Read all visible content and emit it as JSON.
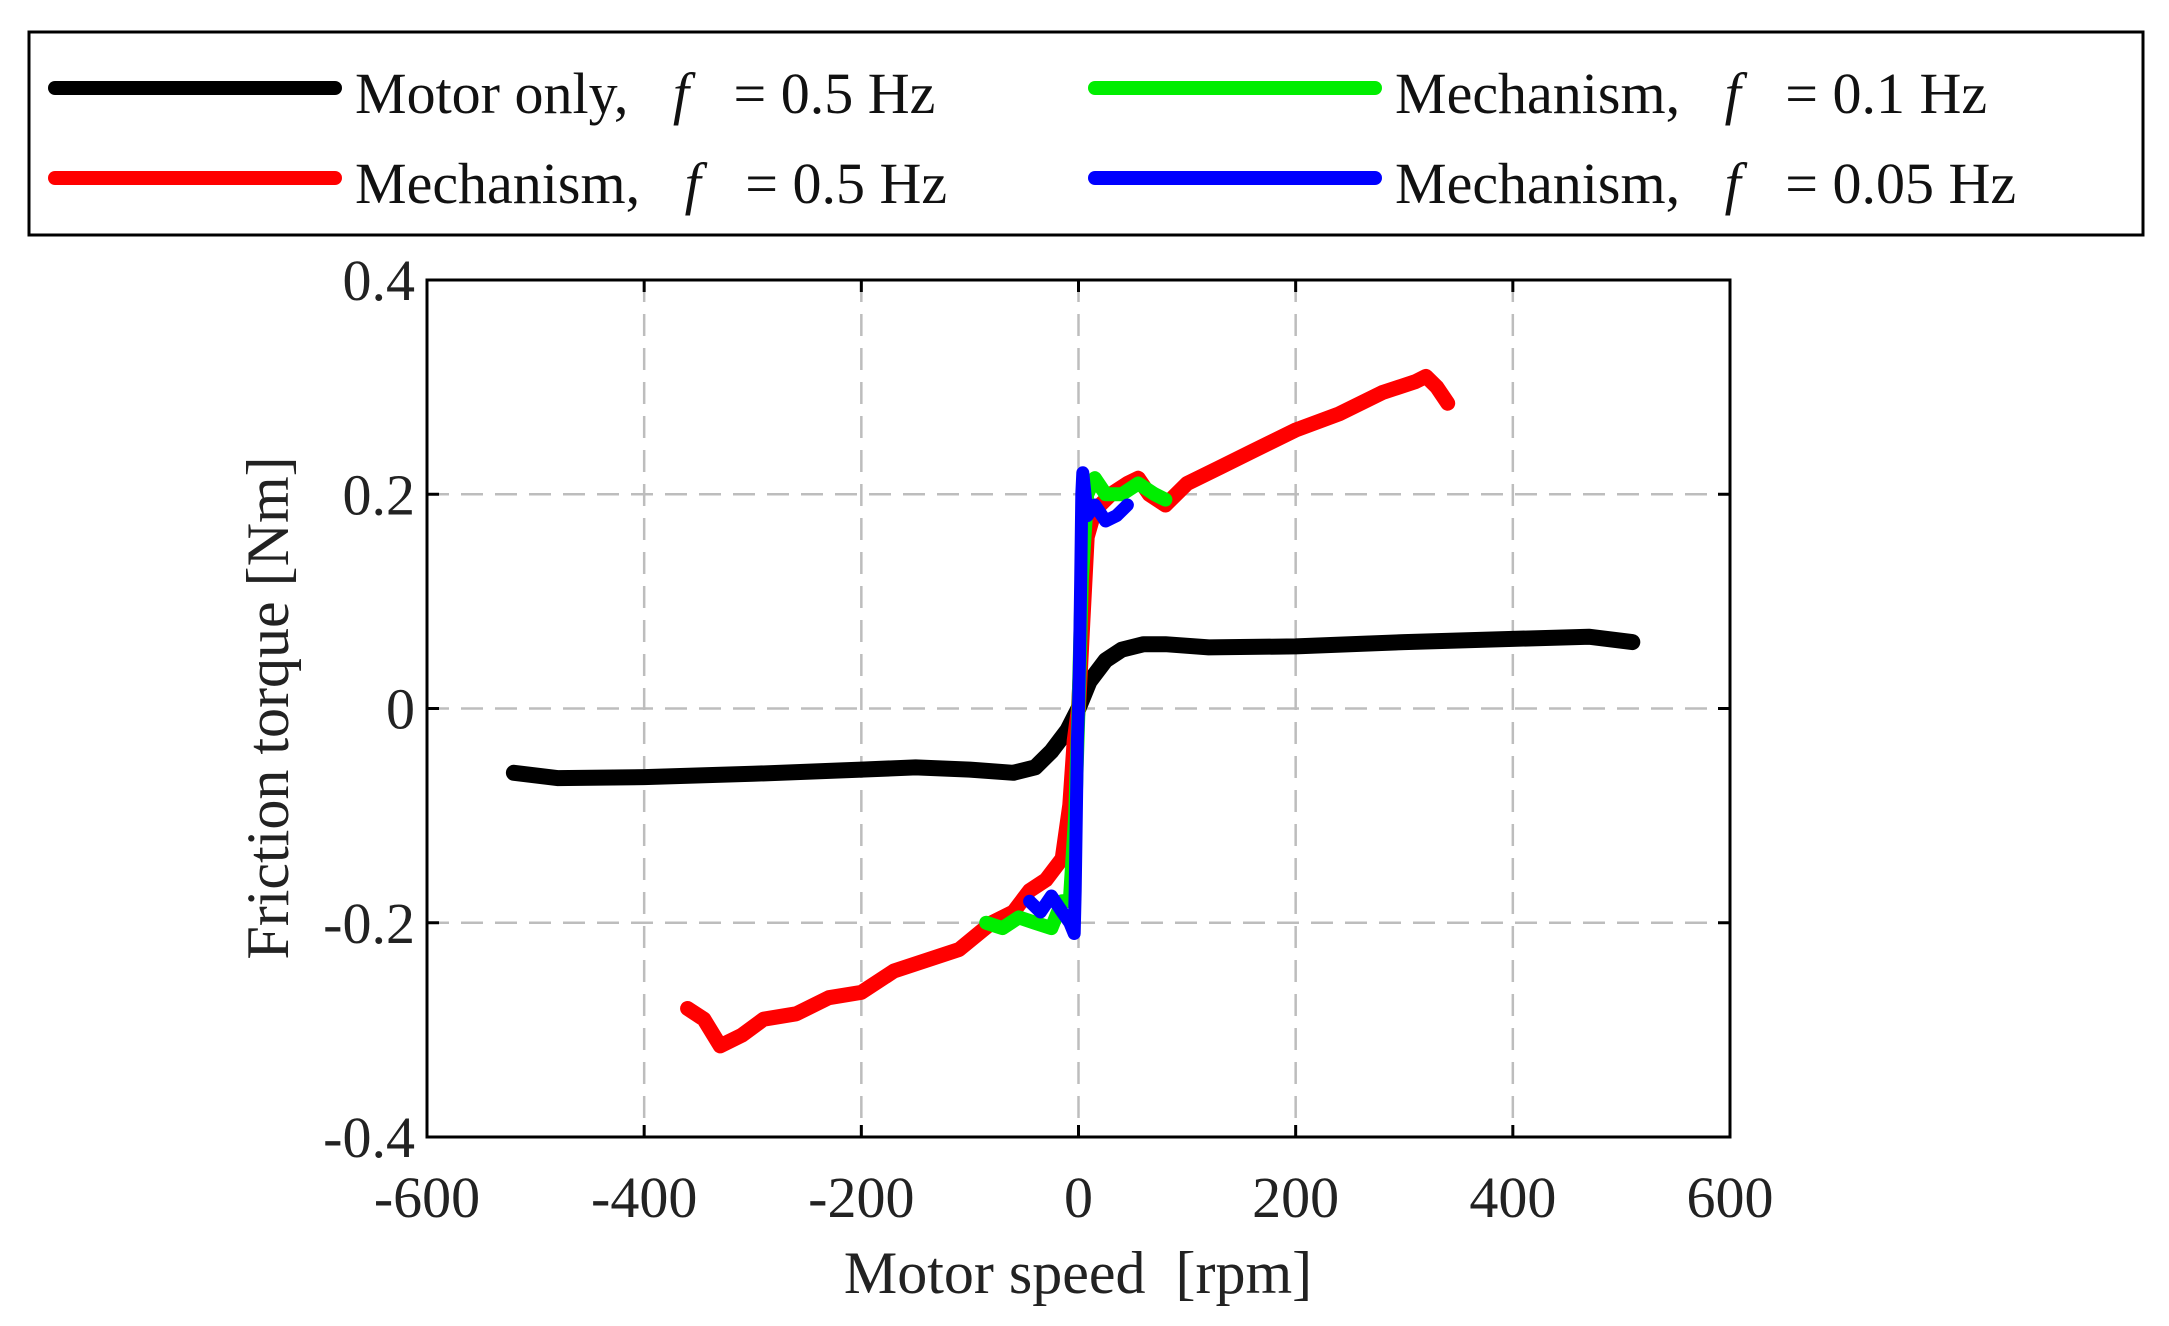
{
  "chart_data": {
    "type": "line",
    "xlabel": "Motor speed  [rpm]",
    "ylabel": "Friction torque [Nm]",
    "xlim": [
      -600,
      600
    ],
    "ylim": [
      -0.4,
      0.4
    ],
    "xticks": [
      -600,
      -400,
      -200,
      0,
      200,
      400,
      600
    ],
    "yticks": [
      -0.4,
      -0.2,
      0,
      0.2,
      0.4
    ],
    "xtick_labels": [
      "-600",
      "-400",
      "-200",
      "0",
      "200",
      "400",
      "600"
    ],
    "ytick_labels": [
      "-0.4",
      "-0.2",
      "0",
      "0.2",
      "0.4"
    ],
    "grid": true,
    "legend_position": "top",
    "series": [
      {
        "name": "Motor only",
        "legend_prefix": "Motor only,",
        "legend_var": "f",
        "legend_suffix": "= 0.5 Hz",
        "color": "#000000",
        "x": [
          -520,
          -480,
          -400,
          -300,
          -200,
          -150,
          -100,
          -60,
          -40,
          -25,
          -10,
          0,
          10,
          25,
          40,
          60,
          80,
          120,
          200,
          300,
          400,
          470,
          510
        ],
        "y": [
          -0.06,
          -0.065,
          -0.064,
          -0.061,
          -0.057,
          -0.055,
          -0.057,
          -0.06,
          -0.055,
          -0.04,
          -0.02,
          0.0,
          0.025,
          0.045,
          0.055,
          0.06,
          0.06,
          0.057,
          0.058,
          0.062,
          0.065,
          0.067,
          0.062
        ]
      },
      {
        "name": "Mechanism, f = 0.5 Hz",
        "legend_prefix": "Mechanism,",
        "legend_var": "f",
        "legend_suffix": "= 0.5 Hz",
        "color": "#ff0000",
        "x": [
          -360,
          -345,
          -330,
          -310,
          -290,
          -260,
          -230,
          -200,
          -170,
          -140,
          -110,
          -80,
          -60,
          -45,
          -30,
          -15,
          -8,
          -4,
          0,
          4,
          8,
          15,
          30,
          45,
          55,
          65,
          80,
          100,
          130,
          160,
          200,
          240,
          280,
          310,
          320,
          330,
          340
        ],
        "y": [
          -0.28,
          -0.29,
          -0.315,
          -0.305,
          -0.29,
          -0.285,
          -0.27,
          -0.265,
          -0.245,
          -0.235,
          -0.225,
          -0.2,
          -0.19,
          -0.17,
          -0.16,
          -0.14,
          -0.09,
          -0.03,
          0.0,
          0.08,
          0.16,
          0.185,
          0.2,
          0.21,
          0.215,
          0.2,
          0.19,
          0.21,
          0.225,
          0.24,
          0.26,
          0.275,
          0.295,
          0.305,
          0.31,
          0.3,
          0.285
        ]
      },
      {
        "name": "Mechanism, f = 0.1 Hz",
        "legend_prefix": "Mechanism,",
        "legend_var": "f",
        "legend_suffix": "= 0.1 Hz",
        "color": "#00ee00",
        "x": [
          -85,
          -70,
          -55,
          -40,
          -25,
          -15,
          -8,
          -3,
          0,
          3,
          8,
          15,
          25,
          40,
          55,
          70,
          80
        ],
        "y": [
          -0.2,
          -0.205,
          -0.195,
          -0.2,
          -0.205,
          -0.18,
          -0.18,
          -0.1,
          0.0,
          0.12,
          0.2,
          0.215,
          0.2,
          0.2,
          0.21,
          0.2,
          0.195
        ]
      },
      {
        "name": "Mechanism, f = 0.05 Hz",
        "legend_prefix": "Mechanism,",
        "legend_var": "f",
        "legend_suffix": "= 0.05 Hz",
        "color": "#0000ff",
        "x": [
          -45,
          -35,
          -25,
          -15,
          -8,
          -4,
          -3,
          -2,
          -1,
          0,
          1,
          2,
          3,
          4,
          8,
          15,
          25,
          35,
          45
        ],
        "y": [
          -0.18,
          -0.19,
          -0.175,
          -0.19,
          -0.2,
          -0.21,
          -0.17,
          -0.1,
          -0.03,
          0.0,
          0.05,
          0.12,
          0.2,
          0.22,
          0.18,
          0.19,
          0.175,
          0.18,
          0.19
        ]
      }
    ]
  }
}
